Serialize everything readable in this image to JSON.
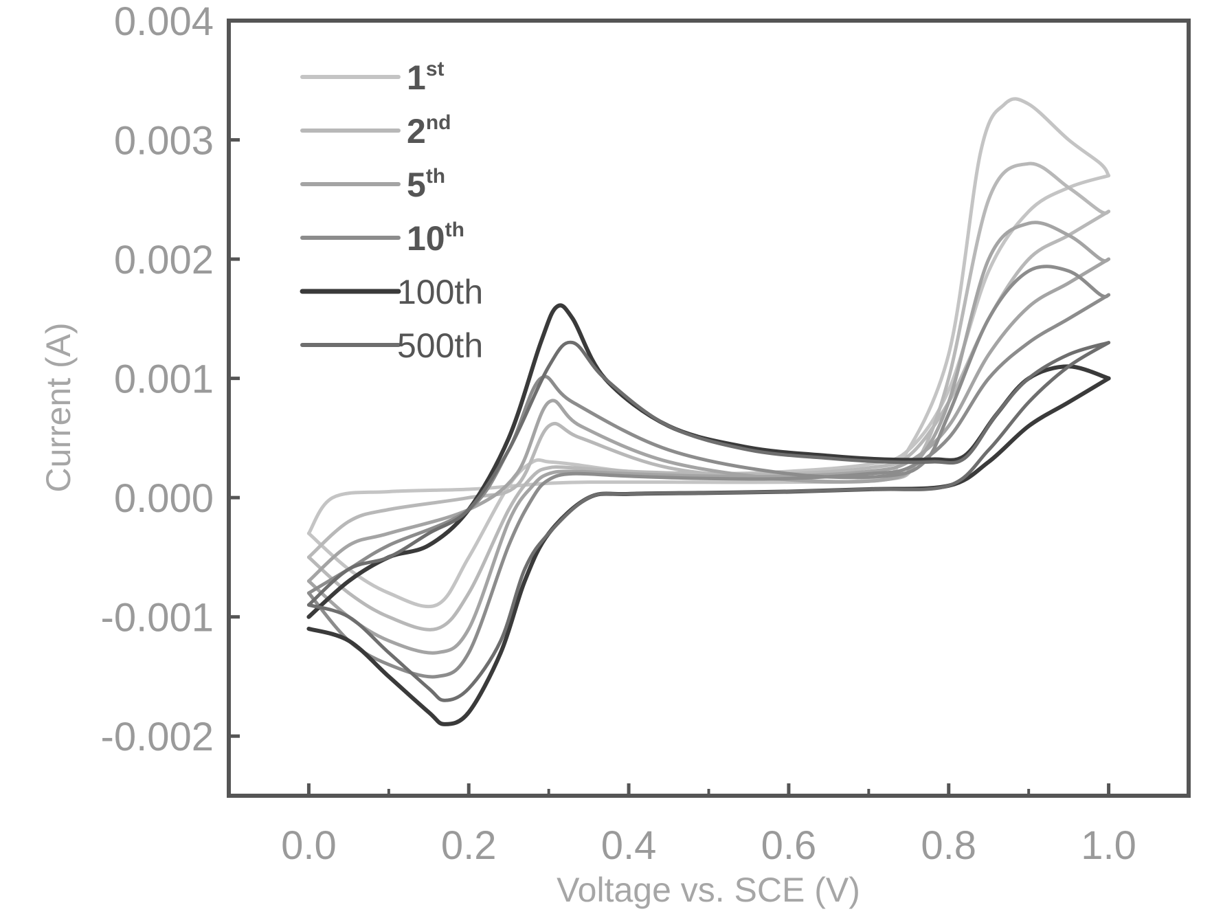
{
  "chart_data": {
    "type": "line",
    "title": "",
    "xlabel": "Voltage vs. SCE (V)",
    "ylabel": "Current (A)",
    "xlim": [
      -0.1,
      1.1
    ],
    "ylim": [
      -0.0025,
      0.004
    ],
    "grid": false,
    "legend_position": "top-left",
    "x_ticks": [
      0.0,
      0.2,
      0.4,
      0.6,
      0.8,
      1.0
    ],
    "x_tick_labels": [
      "0.0",
      "0.2",
      "0.4",
      "0.6",
      "0.8",
      "1.0"
    ],
    "y_ticks": [
      0.004,
      0.003,
      0.002,
      0.001,
      0.0,
      -0.001,
      -0.002
    ],
    "y_tick_labels": [
      "0.004",
      "0.003",
      "0.002",
      "0.001",
      "0.000",
      "-0.001",
      "-0.002"
    ],
    "series": [
      {
        "name": "1st",
        "label_main": "1",
        "label_sup": "st",
        "bold": true,
        "color": "#c4c4c4",
        "stroke": 5,
        "anodic_x": [
          0.0,
          0.03,
          0.1,
          0.2,
          0.26,
          0.3,
          0.35,
          0.45,
          0.6,
          0.7,
          0.74,
          0.8,
          0.84,
          0.87,
          0.9,
          0.95,
          0.99,
          1.0
        ],
        "anodic_y": [
          -0.0003,
          0.0,
          5e-05,
          7e-05,
          0.0001,
          0.00012,
          0.00013,
          0.00013,
          0.00013,
          0.00015,
          0.0003,
          0.0012,
          0.0029,
          0.0033,
          0.0033,
          0.003,
          0.0028,
          0.0027
        ],
        "cathodic_x": [
          1.0,
          0.95,
          0.9,
          0.85,
          0.8,
          0.75,
          0.7,
          0.6,
          0.5,
          0.4,
          0.33,
          0.3,
          0.28,
          0.25,
          0.2,
          0.16,
          0.1,
          0.05,
          0.0
        ],
        "cathodic_y": [
          0.0027,
          0.0026,
          0.0024,
          0.0019,
          0.0009,
          0.0004,
          0.00028,
          0.00022,
          0.0002,
          0.00022,
          0.00028,
          0.0003,
          0.0003,
          0.0001,
          -0.0005,
          -0.0009,
          -0.0008,
          -0.0006,
          -0.0003
        ]
      },
      {
        "name": "2nd",
        "label_main": "2",
        "label_sup": "nd",
        "bold": true,
        "color": "#b8b8b8",
        "stroke": 5,
        "anodic_x": [
          0.0,
          0.05,
          0.1,
          0.2,
          0.26,
          0.3,
          0.34,
          0.45,
          0.6,
          0.72,
          0.76,
          0.8,
          0.85,
          0.9,
          0.95,
          0.99,
          1.0
        ],
        "anodic_y": [
          -0.0005,
          -0.0002,
          -0.0001,
          0.0,
          0.0001,
          0.0006,
          0.0005,
          0.00025,
          0.00015,
          0.00015,
          0.0003,
          0.001,
          0.0025,
          0.0028,
          0.0026,
          0.0024,
          0.0024
        ],
        "cathodic_x": [
          1.0,
          0.95,
          0.9,
          0.85,
          0.8,
          0.75,
          0.7,
          0.6,
          0.5,
          0.4,
          0.33,
          0.3,
          0.28,
          0.25,
          0.2,
          0.16,
          0.1,
          0.05,
          0.0
        ],
        "cathodic_y": [
          0.0024,
          0.0022,
          0.002,
          0.0015,
          0.0008,
          0.00035,
          0.00025,
          0.0002,
          0.0002,
          0.00022,
          0.00025,
          0.00025,
          0.00018,
          -0.0001,
          -0.0008,
          -0.0011,
          -0.001,
          -0.0008,
          -0.0005
        ]
      },
      {
        "name": "5th",
        "label_main": "5",
        "label_sup": "th",
        "bold": true,
        "color": "#a4a4a4",
        "stroke": 5,
        "anodic_x": [
          0.0,
          0.05,
          0.1,
          0.2,
          0.26,
          0.3,
          0.34,
          0.45,
          0.6,
          0.72,
          0.76,
          0.8,
          0.85,
          0.9,
          0.95,
          0.99,
          1.0
        ],
        "anodic_y": [
          -0.0007,
          -0.0004,
          -0.0003,
          -0.0001,
          0.0002,
          0.0008,
          0.0006,
          0.0003,
          0.00015,
          0.00015,
          0.0003,
          0.0008,
          0.002,
          0.0023,
          0.0022,
          0.002,
          0.002
        ],
        "cathodic_x": [
          1.0,
          0.95,
          0.9,
          0.85,
          0.8,
          0.75,
          0.7,
          0.6,
          0.5,
          0.4,
          0.33,
          0.3,
          0.28,
          0.25,
          0.2,
          0.16,
          0.1,
          0.05,
          0.0
        ],
        "cathodic_y": [
          0.002,
          0.0018,
          0.0016,
          0.0012,
          0.0006,
          0.0003,
          0.00022,
          0.00018,
          0.00018,
          0.0002,
          0.00022,
          0.0002,
          0.0001,
          -0.0002,
          -0.0011,
          -0.0013,
          -0.0012,
          -0.001,
          -0.0007
        ]
      },
      {
        "name": "10th",
        "label_main": "10",
        "label_sup": "th",
        "bold": true,
        "color": "#8c8c8c",
        "stroke": 5,
        "anodic_x": [
          0.0,
          0.05,
          0.1,
          0.2,
          0.25,
          0.29,
          0.33,
          0.45,
          0.6,
          0.72,
          0.77,
          0.8,
          0.85,
          0.9,
          0.95,
          0.99,
          1.0
        ],
        "anodic_y": [
          -0.0008,
          -0.0006,
          -0.0004,
          -0.0001,
          0.0004,
          0.001,
          0.0008,
          0.0004,
          0.0002,
          0.00018,
          0.0003,
          0.0007,
          0.0015,
          0.0019,
          0.0019,
          0.0017,
          0.0017
        ],
        "cathodic_x": [
          1.0,
          0.95,
          0.9,
          0.85,
          0.8,
          0.75,
          0.7,
          0.6,
          0.5,
          0.4,
          0.33,
          0.3,
          0.28,
          0.25,
          0.2,
          0.16,
          0.1,
          0.05,
          0.0
        ],
        "cathodic_y": [
          0.0017,
          0.0015,
          0.0013,
          0.001,
          0.0005,
          0.00025,
          0.0002,
          0.00016,
          0.00016,
          0.00018,
          0.0002,
          0.00015,
          0.0,
          -0.0004,
          -0.0013,
          -0.0015,
          -0.0014,
          -0.0012,
          -0.0008
        ]
      },
      {
        "name": "100th",
        "label_main": "100th",
        "label_sup": "",
        "bold": false,
        "color": "#3a3a3a",
        "stroke": 6,
        "anodic_x": [
          0.0,
          0.05,
          0.1,
          0.15,
          0.2,
          0.25,
          0.29,
          0.31,
          0.33,
          0.37,
          0.45,
          0.55,
          0.65,
          0.72,
          0.78,
          0.82,
          0.86,
          0.9,
          0.95,
          1.0
        ],
        "anodic_y": [
          -0.001,
          -0.0007,
          -0.0005,
          -0.0004,
          -0.0001,
          0.0005,
          0.0013,
          0.0016,
          0.0015,
          0.001,
          0.0006,
          0.00042,
          0.00035,
          0.00032,
          0.00032,
          0.00035,
          0.0007,
          0.001,
          0.0011,
          0.001
        ],
        "cathodic_x": [
          1.0,
          0.95,
          0.9,
          0.85,
          0.8,
          0.7,
          0.6,
          0.5,
          0.4,
          0.35,
          0.3,
          0.27,
          0.24,
          0.2,
          0.17,
          0.15,
          0.1,
          0.05,
          0.0
        ],
        "cathodic_y": [
          0.001,
          0.0008,
          0.0006,
          0.0003,
          0.0001,
          7e-05,
          5e-05,
          4e-05,
          3e-05,
          0.0,
          -0.0003,
          -0.0007,
          -0.0013,
          -0.0018,
          -0.0019,
          -0.0018,
          -0.0015,
          -0.0012,
          -0.0011
        ]
      },
      {
        "name": "500th",
        "label_main": "500th",
        "label_sup": "",
        "bold": false,
        "color": "#6e6e6e",
        "stroke": 5,
        "anodic_x": [
          0.0,
          0.05,
          0.1,
          0.15,
          0.2,
          0.25,
          0.3,
          0.33,
          0.37,
          0.45,
          0.55,
          0.65,
          0.72,
          0.78,
          0.82,
          0.86,
          0.9,
          0.95,
          1.0
        ],
        "anodic_y": [
          -0.0009,
          -0.0006,
          -0.0005,
          -0.0003,
          -0.0001,
          0.0004,
          0.0011,
          0.0013,
          0.001,
          0.0006,
          0.0004,
          0.00033,
          0.0003,
          0.0003,
          0.00033,
          0.0007,
          0.001,
          0.0012,
          0.0013
        ],
        "cathodic_x": [
          1.0,
          0.95,
          0.9,
          0.85,
          0.8,
          0.7,
          0.6,
          0.5,
          0.4,
          0.35,
          0.3,
          0.27,
          0.24,
          0.2,
          0.17,
          0.15,
          0.1,
          0.05,
          0.0
        ],
        "cathodic_y": [
          0.0013,
          0.0011,
          0.0008,
          0.0004,
          0.0001,
          7e-05,
          5e-05,
          4e-05,
          3e-05,
          0.0,
          -0.0003,
          -0.0006,
          -0.0012,
          -0.0016,
          -0.0017,
          -0.0016,
          -0.0013,
          -0.001,
          -0.0009
        ]
      }
    ]
  }
}
